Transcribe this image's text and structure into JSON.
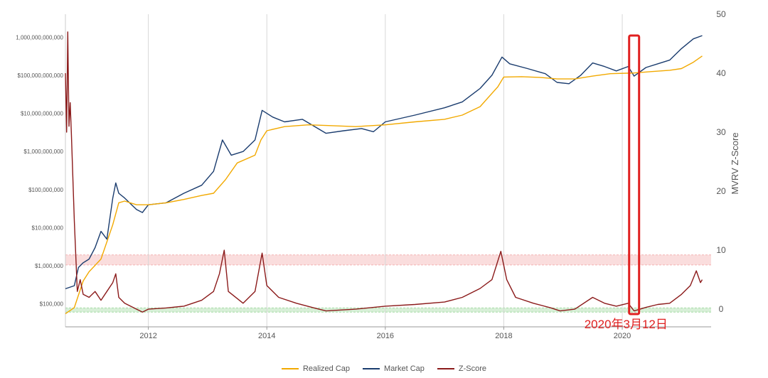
{
  "chart_data": {
    "type": "line",
    "y_left": {
      "scale": "log",
      "range": [
        25000,
        4000000000000
      ],
      "ticks": [
        {
          "value": 100000,
          "label": "$100,000"
        },
        {
          "value": 1000000,
          "label": "$1,000,000"
        },
        {
          "value": 10000000,
          "label": "$10,000,000"
        },
        {
          "value": 100000000,
          "label": "$100,000,000"
        },
        {
          "value": 1000000000,
          "label": "$1,000,000,000"
        },
        {
          "value": 10000000000,
          "label": "$10,000,000,000"
        },
        {
          "value": 100000000000,
          "label": "$100,000,000,000"
        },
        {
          "value": 1000000000000,
          "label": "1,000,000,000,000"
        }
      ]
    },
    "y_right": {
      "label": "MVRV Z-Score",
      "range": [
        -3,
        50
      ],
      "ticks": [
        0,
        10,
        20,
        30,
        40,
        50
      ]
    },
    "x_axis": {
      "range": [
        2010.6,
        2021.5
      ],
      "ticks": [
        2012,
        2014,
        2016,
        2018,
        2020
      ],
      "grid": true
    },
    "bands": [
      {
        "axis": "right",
        "from": 7.5,
        "to": 9.2,
        "color": "#f4b3b3",
        "meaning": "red zone"
      },
      {
        "axis": "right",
        "from": -0.5,
        "to": 0.2,
        "color": "#a6dca6",
        "meaning": "green zone"
      }
    ],
    "series": [
      {
        "name": "Realized Cap",
        "axis": "left",
        "color": "#f2a900",
        "points": [
          [
            2010.6,
            55000
          ],
          [
            2010.75,
            80000
          ],
          [
            2010.9,
            400000
          ],
          [
            2011.0,
            700000
          ],
          [
            2011.2,
            1500000
          ],
          [
            2011.4,
            12000000
          ],
          [
            2011.5,
            45000000
          ],
          [
            2011.6,
            50000000
          ],
          [
            2011.8,
            40000000
          ],
          [
            2012.0,
            40000000
          ],
          [
            2012.3,
            45000000
          ],
          [
            2012.6,
            55000000
          ],
          [
            2012.9,
            70000000
          ],
          [
            2013.1,
            80000000
          ],
          [
            2013.3,
            180000000
          ],
          [
            2013.5,
            500000000
          ],
          [
            2013.8,
            800000000
          ],
          [
            2013.9,
            2000000000
          ],
          [
            2014.0,
            3500000000
          ],
          [
            2014.3,
            4500000000
          ],
          [
            2014.7,
            5000000000
          ],
          [
            2015.0,
            4800000000
          ],
          [
            2015.5,
            4500000000
          ],
          [
            2016.0,
            5000000000
          ],
          [
            2016.5,
            6000000000
          ],
          [
            2017.0,
            7000000000
          ],
          [
            2017.3,
            9000000000
          ],
          [
            2017.6,
            15000000000
          ],
          [
            2017.9,
            50000000000
          ],
          [
            2018.0,
            90000000000
          ],
          [
            2018.3,
            92000000000
          ],
          [
            2018.6,
            88000000000
          ],
          [
            2018.9,
            80000000000
          ],
          [
            2019.2,
            80000000000
          ],
          [
            2019.5,
            95000000000
          ],
          [
            2019.8,
            110000000000
          ],
          [
            2020.2,
            115000000000
          ],
          [
            2020.5,
            125000000000
          ],
          [
            2020.8,
            135000000000
          ],
          [
            2021.0,
            150000000000
          ],
          [
            2021.2,
            220000000000
          ],
          [
            2021.35,
            320000000000
          ]
        ]
      },
      {
        "name": "Market Cap",
        "axis": "left",
        "color": "#1a3c6e",
        "points": [
          [
            2010.6,
            250000
          ],
          [
            2010.75,
            300000
          ],
          [
            2010.82,
            900000
          ],
          [
            2010.9,
            1200000
          ],
          [
            2011.0,
            1500000
          ],
          [
            2011.1,
            3000000
          ],
          [
            2011.2,
            8000000
          ],
          [
            2011.3,
            5000000
          ],
          [
            2011.4,
            60000000
          ],
          [
            2011.45,
            150000000
          ],
          [
            2011.5,
            80000000
          ],
          [
            2011.6,
            60000000
          ],
          [
            2011.8,
            30000000
          ],
          [
            2011.9,
            25000000
          ],
          [
            2012.0,
            40000000
          ],
          [
            2012.3,
            45000000
          ],
          [
            2012.6,
            80000000
          ],
          [
            2012.9,
            130000000
          ],
          [
            2013.1,
            300000000
          ],
          [
            2013.25,
            2000000000
          ],
          [
            2013.4,
            800000000
          ],
          [
            2013.6,
            1000000000
          ],
          [
            2013.8,
            2000000000
          ],
          [
            2013.92,
            12000000000
          ],
          [
            2014.1,
            8000000000
          ],
          [
            2014.3,
            6000000000
          ],
          [
            2014.6,
            7000000000
          ],
          [
            2015.0,
            3000000000
          ],
          [
            2015.3,
            3500000000
          ],
          [
            2015.6,
            4000000000
          ],
          [
            2015.8,
            3300000000
          ],
          [
            2016.0,
            6000000000
          ],
          [
            2016.5,
            9000000000
          ],
          [
            2017.0,
            14000000000
          ],
          [
            2017.3,
            20000000000
          ],
          [
            2017.6,
            45000000000
          ],
          [
            2017.8,
            100000000000
          ],
          [
            2017.97,
            300000000000
          ],
          [
            2018.1,
            200000000000
          ],
          [
            2018.4,
            150000000000
          ],
          [
            2018.7,
            110000000000
          ],
          [
            2018.9,
            65000000000
          ],
          [
            2019.1,
            60000000000
          ],
          [
            2019.3,
            100000000000
          ],
          [
            2019.5,
            210000000000
          ],
          [
            2019.7,
            170000000000
          ],
          [
            2019.9,
            130000000000
          ],
          [
            2020.1,
            170000000000
          ],
          [
            2020.2,
            95000000000
          ],
          [
            2020.4,
            160000000000
          ],
          [
            2020.6,
            200000000000
          ],
          [
            2020.8,
            250000000000
          ],
          [
            2021.0,
            500000000000
          ],
          [
            2021.2,
            900000000000
          ],
          [
            2021.35,
            1100000000000
          ]
        ]
      },
      {
        "name": "Z-Score",
        "axis": "right",
        "color": "#8b1a1a",
        "points": [
          [
            2010.6,
            40
          ],
          [
            2010.62,
            30
          ],
          [
            2010.64,
            47
          ],
          [
            2010.66,
            31
          ],
          [
            2010.68,
            35
          ],
          [
            2010.7,
            30
          ],
          [
            2010.75,
            15
          ],
          [
            2010.8,
            3
          ],
          [
            2010.85,
            5
          ],
          [
            2010.9,
            2.5
          ],
          [
            2011.0,
            2
          ],
          [
            2011.1,
            3
          ],
          [
            2011.2,
            1.5
          ],
          [
            2011.3,
            3
          ],
          [
            2011.4,
            4.5
          ],
          [
            2011.45,
            6
          ],
          [
            2011.5,
            2
          ],
          [
            2011.6,
            1
          ],
          [
            2011.8,
            0
          ],
          [
            2011.9,
            -0.5
          ],
          [
            2012.0,
            0
          ],
          [
            2012.3,
            0.2
          ],
          [
            2012.6,
            0.5
          ],
          [
            2012.9,
            1.5
          ],
          [
            2013.1,
            3
          ],
          [
            2013.2,
            6
          ],
          [
            2013.28,
            10
          ],
          [
            2013.35,
            3
          ],
          [
            2013.6,
            1
          ],
          [
            2013.8,
            3
          ],
          [
            2013.92,
            9.5
          ],
          [
            2014.0,
            4
          ],
          [
            2014.2,
            2
          ],
          [
            2014.5,
            1
          ],
          [
            2014.8,
            0.2
          ],
          [
            2015.0,
            -0.3
          ],
          [
            2015.5,
            0
          ],
          [
            2016.0,
            0.5
          ],
          [
            2016.5,
            0.8
          ],
          [
            2017.0,
            1.2
          ],
          [
            2017.3,
            2
          ],
          [
            2017.6,
            3.5
          ],
          [
            2017.8,
            5
          ],
          [
            2017.95,
            9.8
          ],
          [
            2018.05,
            5
          ],
          [
            2018.2,
            2
          ],
          [
            2018.5,
            1
          ],
          [
            2018.8,
            0.2
          ],
          [
            2018.95,
            -0.3
          ],
          [
            2019.2,
            0
          ],
          [
            2019.5,
            2
          ],
          [
            2019.7,
            1
          ],
          [
            2019.9,
            0.5
          ],
          [
            2020.1,
            1
          ],
          [
            2020.2,
            -0.3
          ],
          [
            2020.4,
            0.3
          ],
          [
            2020.6,
            0.8
          ],
          [
            2020.8,
            1
          ],
          [
            2021.0,
            2.5
          ],
          [
            2021.15,
            4
          ],
          [
            2021.25,
            6.5
          ],
          [
            2021.32,
            4.5
          ],
          [
            2021.35,
            5
          ]
        ]
      }
    ],
    "annotations": [
      {
        "text": "2020年3月12日",
        "x": 2020.2,
        "color": "#e02020"
      }
    ],
    "legend": {
      "position": "bottom",
      "items": [
        {
          "label": "Realized Cap",
          "color": "#f2a900"
        },
        {
          "label": "Market Cap",
          "color": "#1a3c6e"
        },
        {
          "label": "Z-Score",
          "color": "#8b1a1a"
        }
      ]
    }
  }
}
